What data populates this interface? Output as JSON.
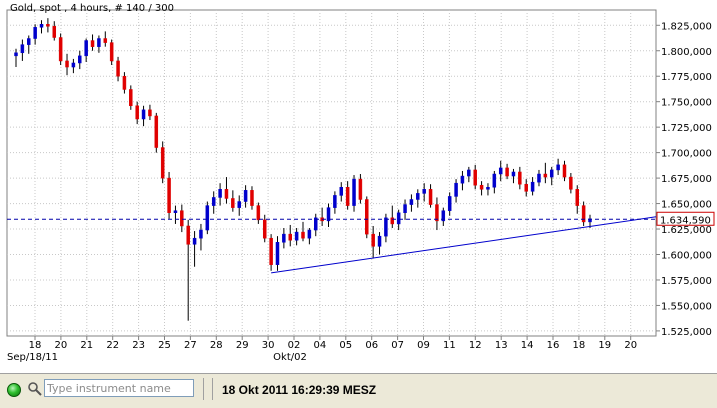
{
  "chart_data": {
    "type": "candlestick",
    "title": "Gold, spot , 4 hours, # 140 / 300",
    "instrument": "Gold, spot",
    "timeframe": "4 hours",
    "bar_counter": "# 140 / 300",
    "y_ticks": [
      "1.825,000",
      "1.800,000",
      "1.775,000",
      "1.750,000",
      "1.725,000",
      "1.700,000",
      "1.675,000",
      "1.650,000",
      "1.625,000",
      "1.600,000",
      "1.575,000",
      "1.550,000",
      "1.525,000"
    ],
    "y_tick_values": [
      1825,
      1800,
      1775,
      1750,
      1725,
      1700,
      1675,
      1650,
      1625,
      1600,
      1575,
      1550,
      1525
    ],
    "ylim": [
      1520,
      1840
    ],
    "x_ticks": [
      "18",
      "20",
      "21",
      "22",
      "23",
      "25",
      "27",
      "28",
      "29",
      "30",
      "02",
      "04",
      "05",
      "06",
      "07",
      "09",
      "11",
      "12",
      "13",
      "14",
      "16",
      "18",
      "19",
      "20"
    ],
    "x_sub_labels": [
      "Sep/18/11",
      "Okt/02"
    ],
    "current_price_label": "1.634,590",
    "current_price": 1634.59,
    "trendline": {
      "from": 1582,
      "to": 1637,
      "color": "#0000cc"
    },
    "colors": {
      "up": "#0000cc",
      "down": "#e00000",
      "grid": "#c8c8c8",
      "current": "#0000aa",
      "current_label": "#cc0000"
    },
    "candles": [
      [
        1795,
        1802,
        1784,
        1798
      ],
      [
        1798,
        1811,
        1790,
        1806
      ],
      [
        1806,
        1815,
        1797,
        1812
      ],
      [
        1812,
        1826,
        1806,
        1823
      ],
      [
        1823,
        1830,
        1817,
        1826
      ],
      [
        1826,
        1832,
        1818,
        1824
      ],
      [
        1824,
        1829,
        1810,
        1813
      ],
      [
        1813,
        1817,
        1786,
        1790
      ],
      [
        1790,
        1797,
        1776,
        1784
      ],
      [
        1784,
        1792,
        1778,
        1788
      ],
      [
        1788,
        1800,
        1782,
        1795
      ],
      [
        1795,
        1812,
        1789,
        1810
      ],
      [
        1810,
        1816,
        1800,
        1804
      ],
      [
        1804,
        1815,
        1798,
        1812
      ],
      [
        1812,
        1819,
        1804,
        1808
      ],
      [
        1808,
        1811,
        1786,
        1790
      ],
      [
        1790,
        1794,
        1770,
        1775
      ],
      [
        1775,
        1779,
        1758,
        1762
      ],
      [
        1762,
        1766,
        1742,
        1746
      ],
      [
        1746,
        1750,
        1728,
        1733
      ],
      [
        1733,
        1746,
        1726,
        1742
      ],
      [
        1742,
        1747,
        1732,
        1736
      ],
      [
        1736,
        1739,
        1700,
        1705
      ],
      [
        1705,
        1711,
        1670,
        1675
      ],
      [
        1675,
        1681,
        1635,
        1641
      ],
      [
        1641,
        1648,
        1630,
        1643
      ],
      [
        1643,
        1649,
        1622,
        1628
      ],
      [
        1628,
        1634,
        1535,
        1610
      ],
      [
        1610,
        1623,
        1588,
        1616
      ],
      [
        1616,
        1630,
        1604,
        1624
      ],
      [
        1624,
        1652,
        1620,
        1648
      ],
      [
        1648,
        1662,
        1640,
        1656
      ],
      [
        1656,
        1670,
        1648,
        1664
      ],
      [
        1664,
        1676,
        1650,
        1655
      ],
      [
        1655,
        1663,
        1642,
        1646
      ],
      [
        1646,
        1658,
        1638,
        1652
      ],
      [
        1652,
        1668,
        1646,
        1663
      ],
      [
        1663,
        1667,
        1644,
        1648
      ],
      [
        1648,
        1651,
        1630,
        1634
      ],
      [
        1634,
        1639,
        1612,
        1616
      ],
      [
        1616,
        1620,
        1584,
        1590
      ],
      [
        1590,
        1618,
        1584,
        1612
      ],
      [
        1612,
        1626,
        1606,
        1620
      ],
      [
        1620,
        1629,
        1608,
        1614
      ],
      [
        1614,
        1626,
        1609,
        1622
      ],
      [
        1622,
        1632,
        1613,
        1616
      ],
      [
        1616,
        1626,
        1610,
        1624
      ],
      [
        1624,
        1640,
        1618,
        1636
      ],
      [
        1636,
        1646,
        1628,
        1633
      ],
      [
        1633,
        1650,
        1627,
        1646
      ],
      [
        1646,
        1662,
        1640,
        1658
      ],
      [
        1658,
        1671,
        1652,
        1666
      ],
      [
        1666,
        1672,
        1644,
        1648
      ],
      [
        1648,
        1678,
        1642,
        1674
      ],
      [
        1674,
        1679,
        1650,
        1654
      ],
      [
        1654,
        1657,
        1616,
        1620
      ],
      [
        1620,
        1628,
        1596,
        1608
      ],
      [
        1608,
        1622,
        1600,
        1618
      ],
      [
        1618,
        1640,
        1612,
        1636
      ],
      [
        1636,
        1648,
        1626,
        1630
      ],
      [
        1630,
        1644,
        1624,
        1641
      ],
      [
        1641,
        1654,
        1634,
        1649
      ],
      [
        1649,
        1659,
        1642,
        1654
      ],
      [
        1654,
        1664,
        1646,
        1660
      ],
      [
        1660,
        1670,
        1652,
        1664
      ],
      [
        1664,
        1669,
        1646,
        1649
      ],
      [
        1649,
        1656,
        1624,
        1633
      ],
      [
        1633,
        1646,
        1628,
        1643
      ],
      [
        1643,
        1661,
        1638,
        1657
      ],
      [
        1657,
        1674,
        1651,
        1670
      ],
      [
        1670,
        1682,
        1663,
        1677
      ],
      [
        1677,
        1686,
        1671,
        1683
      ],
      [
        1683,
        1688,
        1664,
        1668
      ],
      [
        1668,
        1672,
        1658,
        1664
      ],
      [
        1664,
        1670,
        1658,
        1666
      ],
      [
        1666,
        1682,
        1660,
        1679
      ],
      [
        1679,
        1692,
        1672,
        1685
      ],
      [
        1685,
        1689,
        1674,
        1677
      ],
      [
        1677,
        1684,
        1670,
        1681
      ],
      [
        1681,
        1686,
        1664,
        1669
      ],
      [
        1669,
        1674,
        1657,
        1662
      ],
      [
        1662,
        1676,
        1658,
        1671
      ],
      [
        1671,
        1683,
        1667,
        1679
      ],
      [
        1679,
        1690,
        1670,
        1676
      ],
      [
        1676,
        1686,
        1668,
        1683
      ],
      [
        1683,
        1694,
        1678,
        1688
      ],
      [
        1688,
        1692,
        1672,
        1676
      ],
      [
        1676,
        1680,
        1660,
        1664
      ],
      [
        1664,
        1668,
        1640,
        1648
      ],
      [
        1648,
        1652,
        1628,
        1632
      ],
      [
        1632,
        1639,
        1626,
        1635
      ]
    ]
  },
  "status_bar": {
    "search_placeholder": "Type instrument name",
    "timestamp": "18 Okt 2011 16:29:39 MESZ"
  }
}
